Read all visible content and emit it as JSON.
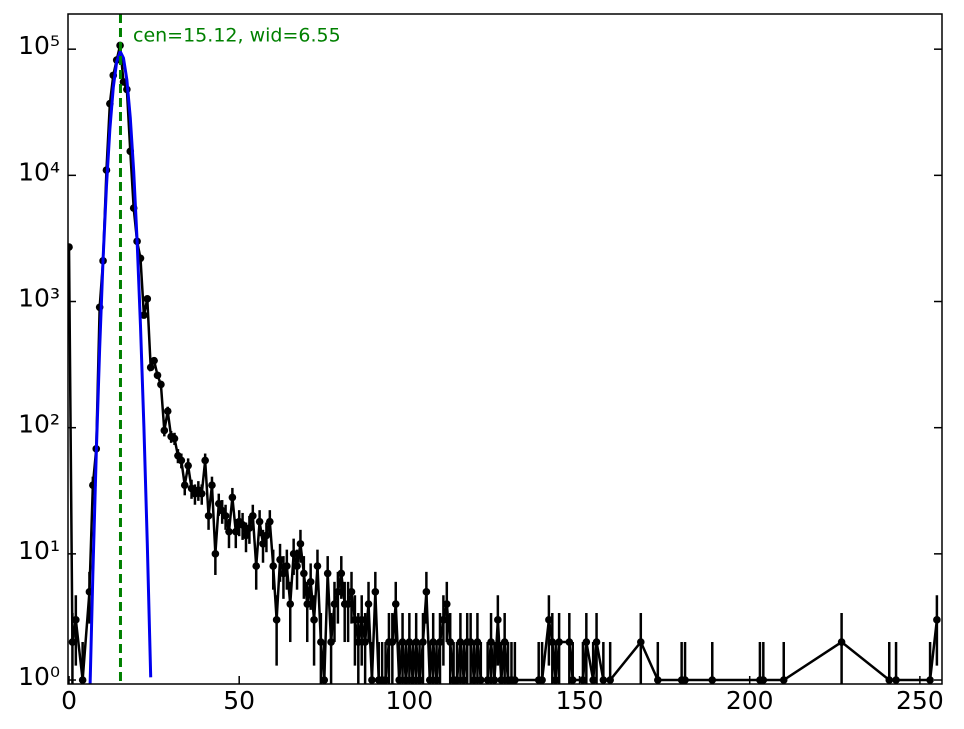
{
  "chart_data": {
    "type": "errorbar",
    "annotation": "cen=15.12, wid=6.55",
    "log_y": true,
    "xlim": [
      -0.3,
      256.5
    ],
    "ylim": [
      0.93,
      190000
    ],
    "xticks": [
      0,
      50,
      100,
      150,
      200,
      250
    ],
    "yticks": [
      {
        "value": 1,
        "label": "10⁰"
      },
      {
        "value": 10,
        "label": "10¹"
      },
      {
        "value": 100,
        "label": "10²"
      },
      {
        "value": 1000,
        "label": "10³"
      },
      {
        "value": 10000,
        "label": "10⁴"
      },
      {
        "value": 100000,
        "label": "10⁵"
      }
    ],
    "points": {
      "color": "#000000",
      "x": [
        0,
        1,
        2,
        4,
        6,
        7,
        8,
        9,
        10,
        11,
        12,
        13,
        14,
        15,
        16,
        17,
        18,
        19,
        20,
        21,
        22,
        23,
        24,
        25,
        26,
        27,
        28,
        29,
        30,
        31,
        32,
        33,
        34,
        35,
        36,
        37,
        38,
        39,
        40,
        41,
        42,
        43,
        44,
        45,
        46,
        47,
        48,
        49,
        50,
        51,
        52,
        53,
        54,
        55,
        56,
        57,
        58,
        59,
        60,
        61,
        62,
        63,
        64,
        65,
        66,
        67,
        68,
        69,
        70,
        71,
        72,
        73,
        74,
        75,
        76,
        77,
        78,
        79,
        80,
        81,
        82,
        83,
        84,
        85,
        86,
        87,
        88,
        89,
        90,
        91,
        92,
        93,
        94,
        95,
        96,
        97,
        98,
        99,
        100,
        101,
        102,
        103,
        104,
        105,
        106,
        107,
        108,
        109,
        110,
        111,
        112,
        113,
        114,
        115,
        116,
        117,
        118,
        119,
        120,
        121,
        123,
        124,
        125,
        126,
        127,
        128,
        129,
        130,
        131,
        138,
        139,
        141,
        142,
        143,
        144,
        147,
        148,
        151,
        152,
        154,
        155,
        157,
        159,
        168,
        173,
        180,
        181,
        189,
        203,
        204,
        210,
        227,
        241,
        243,
        253,
        255
      ],
      "values": [
        2700,
        2,
        3,
        1,
        5,
        35,
        68,
        900,
        2100,
        11000,
        37000,
        62000,
        82000,
        107000,
        55000,
        48000,
        15500,
        5500,
        3000,
        2200,
        780,
        1050,
        300,
        340,
        260,
        220,
        95,
        135,
        85,
        82,
        60,
        55,
        35,
        50,
        33,
        30,
        32,
        30,
        55,
        20,
        35,
        10,
        25,
        22,
        20,
        15,
        28,
        15,
        18,
        17,
        14,
        16,
        20,
        8,
        18,
        12,
        14,
        18,
        8,
        3,
        9,
        7,
        8,
        4,
        10,
        8,
        12,
        7,
        4,
        6,
        3,
        8,
        2,
        1,
        7,
        2,
        4,
        5,
        7,
        4,
        4,
        5,
        3,
        2,
        3,
        2,
        4,
        1,
        5,
        1,
        1,
        1,
        2,
        2,
        4,
        1,
        2,
        1,
        2,
        1,
        2,
        1,
        2,
        5,
        1,
        2,
        1,
        2,
        3,
        4,
        2,
        1,
        1,
        2,
        1,
        2,
        2,
        1,
        2,
        1,
        1,
        2,
        1,
        3,
        1,
        2,
        1,
        1,
        1,
        1,
        1,
        3,
        2,
        1,
        2,
        2,
        1,
        1,
        2,
        1,
        2,
        1,
        1,
        2,
        1,
        1,
        1,
        1,
        1,
        1,
        1,
        2,
        1,
        1,
        1,
        3
      ],
      "errors": [
        52,
        1.4,
        1.7,
        1,
        2.2,
        5.9,
        8.2,
        30,
        46,
        105,
        192,
        249,
        286,
        327,
        235,
        219,
        124,
        74,
        55,
        47,
        28,
        32,
        17,
        18,
        16,
        15,
        9.7,
        11.6,
        9.2,
        9.1,
        7.7,
        7.4,
        5.9,
        7.1,
        5.7,
        5.5,
        5.7,
        5.5,
        7.4,
        4.5,
        5.9,
        3.2,
        5,
        4.7,
        4.5,
        3.9,
        5.3,
        3.9,
        4.2,
        4.1,
        3.7,
        4,
        4.5,
        2.8,
        4.2,
        3.5,
        3.7,
        4.2,
        2.8,
        1.7,
        3,
        2.6,
        2.8,
        2,
        3.2,
        2.8,
        3.5,
        2.6,
        2,
        2.4,
        1.7,
        2.8,
        1.4,
        1,
        2.6,
        1.4,
        2,
        2.2,
        2.6,
        2,
        2,
        2.2,
        1.7,
        1.4,
        1.7,
        1.4,
        2,
        1,
        2.2,
        1,
        1,
        1,
        1.4,
        1.4,
        2,
        1,
        1.4,
        1,
        1.4,
        1,
        1.4,
        1,
        1.4,
        2.2,
        1,
        1.4,
        1,
        1.4,
        1.7,
        2,
        1.4,
        1,
        1,
        1.4,
        1,
        1.4,
        1.4,
        1,
        1.4,
        1,
        1,
        1.4,
        1,
        1.7,
        1,
        1.4,
        1,
        1,
        1,
        1,
        1,
        1.7,
        1.4,
        1,
        1.4,
        1.4,
        1,
        1,
        1.4,
        1,
        1.4,
        1,
        1,
        1.4,
        1,
        1,
        1,
        1,
        1,
        1,
        1,
        1.4,
        1,
        1,
        1,
        1.7
      ]
    },
    "fit": {
      "color": "#0000ee",
      "x": [
        6,
        7,
        8,
        9,
        10,
        11,
        12,
        13,
        14,
        15,
        15.12,
        16,
        17,
        18,
        19,
        20,
        21,
        22,
        23,
        24
      ],
      "values": [
        0.57,
        6.9,
        62,
        424,
        2150,
        8190,
        23200,
        49600,
        79300,
        94900,
        95000,
        84900,
        57000,
        28600,
        10800,
        3050,
        640,
        102,
        12,
        1.05
      ]
    },
    "marker_line": {
      "x": 15.12,
      "color": "#008000"
    }
  }
}
